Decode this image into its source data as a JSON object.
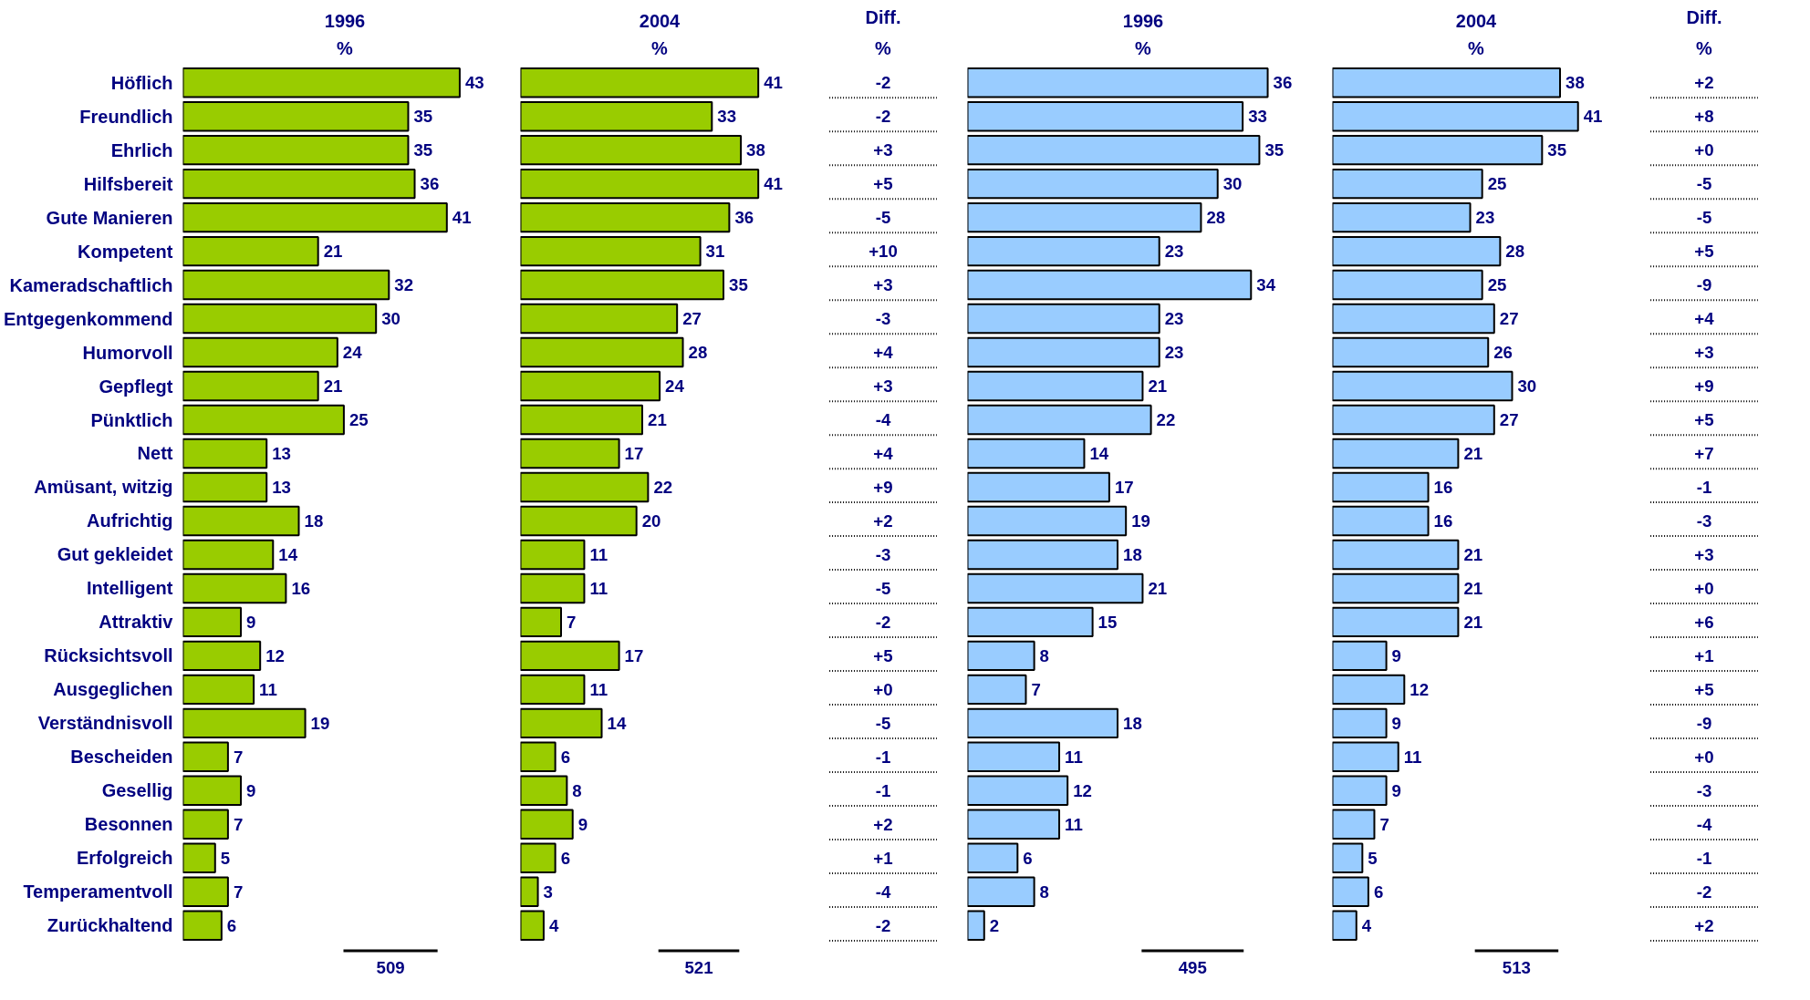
{
  "chart_data": [
    {
      "type": "bar",
      "orientation": "horizontal",
      "title": "1996",
      "subtitle": "%",
      "data_labels": true,
      "tick_labels": "y",
      "categories": [
        "Höflich",
        "Freundlich",
        "Ehrlich",
        "Hilfsbereit",
        "Gute Manieren",
        "Kompetent",
        "Kameradschaftlich",
        "Entgegenkommend",
        "Humorvoll",
        "Gepflegt",
        "Pünktlich",
        "Nett",
        "Amüsant, witzig",
        "Aufrichtig",
        "Gut gekleidet",
        "Intelligent",
        "Attraktiv",
        "Rücksichtsvoll",
        "Ausgeglichen",
        "Verständnisvoll",
        "Bescheiden",
        "Gesellig",
        "Besonnen",
        "Erfolgreich",
        "Temperamentvoll",
        "Zurückhaltend"
      ],
      "series": [
        {
          "color": "#99cc00",
          "values": [
            43,
            35,
            35,
            36,
            41,
            21,
            32,
            30,
            24,
            21,
            25,
            13,
            13,
            18,
            14,
            16,
            9,
            12,
            11,
            19,
            7,
            9,
            7,
            5,
            7,
            6
          ]
        }
      ],
      "annotations": [
        "509"
      ]
    },
    {
      "type": "bar",
      "orientation": "horizontal",
      "title": "2004",
      "subtitle": "%",
      "data_labels": true,
      "tick_labels": false,
      "categories": [
        null,
        null,
        null,
        null,
        null,
        null,
        null,
        null,
        null,
        null,
        null,
        null,
        null,
        null,
        null,
        null,
        null,
        null,
        null,
        null,
        null,
        null,
        null,
        null,
        null,
        null
      ],
      "series": [
        {
          "color": "#99cc00",
          "values": [
            41,
            33,
            38,
            41,
            36,
            31,
            35,
            27,
            28,
            24,
            21,
            17,
            22,
            20,
            11,
            11,
            7,
            17,
            11,
            14,
            6,
            8,
            9,
            6,
            3,
            4
          ]
        }
      ],
      "annotations": [
        "521"
      ]
    },
    {
      "type": "other",
      "title": "Diff.",
      "subtitle": "%",
      "categories": [
        null,
        null,
        null,
        null,
        null,
        null,
        null,
        null,
        null,
        null,
        null,
        null,
        null,
        null,
        null,
        null,
        null,
        null,
        null,
        null,
        null,
        null,
        null,
        null,
        null,
        null
      ],
      "value_labels": [
        "-2",
        "-2",
        "+3",
        "+5",
        "-5",
        "+10",
        "+3",
        "-3",
        "+4",
        "+3",
        "-4",
        "+4",
        "+9",
        "+2",
        "-3",
        "-5",
        "-2",
        "+5",
        "+0",
        "-5",
        "-1",
        "-1",
        "+2",
        "+1",
        "-4",
        "-2"
      ]
    },
    {
      "type": "bar",
      "orientation": "horizontal",
      "title": "1996",
      "subtitle": "%",
      "data_labels": true,
      "tick_labels": false,
      "categories": [
        null,
        null,
        null,
        null,
        null,
        null,
        null,
        null,
        null,
        null,
        null,
        null,
        null,
        null,
        null,
        null,
        null,
        null,
        null,
        null,
        null,
        null,
        null,
        null,
        null,
        null
      ],
      "series": [
        {
          "color": "#99ccff",
          "values": [
            36,
            33,
            35,
            30,
            28,
            23,
            34,
            23,
            23,
            21,
            22,
            14,
            17,
            19,
            18,
            21,
            15,
            8,
            7,
            18,
            11,
            12,
            11,
            6,
            8,
            2
          ]
        }
      ],
      "annotations": [
        "495"
      ]
    },
    {
      "type": "bar",
      "orientation": "horizontal",
      "title": "2004",
      "subtitle": "%",
      "data_labels": true,
      "tick_labels": false,
      "categories": [
        null,
        null,
        null,
        null,
        null,
        null,
        null,
        null,
        null,
        null,
        null,
        null,
        null,
        null,
        null,
        null,
        null,
        null,
        null,
        null,
        null,
        null,
        null,
        null,
        null,
        null
      ],
      "series": [
        {
          "color": "#99ccff",
          "values": [
            38,
            41,
            35,
            25,
            23,
            28,
            25,
            27,
            26,
            30,
            27,
            21,
            16,
            16,
            21,
            21,
            21,
            9,
            12,
            9,
            11,
            9,
            7,
            5,
            6,
            4
          ]
        }
      ],
      "annotations": [
        "513"
      ]
    },
    {
      "type": "other",
      "title": "Diff.",
      "subtitle": "%",
      "categories": [
        null,
        null,
        null,
        null,
        null,
        null,
        null,
        null,
        null,
        null,
        null,
        null,
        null,
        null,
        null,
        null,
        null,
        null,
        null,
        null,
        null,
        null,
        null,
        null,
        null,
        null
      ],
      "value_labels": [
        "+2",
        "+8",
        "+0",
        "-5",
        "-5",
        "+5",
        "-9",
        "+4",
        "+3",
        "+9",
        "+5",
        "+7",
        "-1",
        "-3",
        "+3",
        "+0",
        "+6",
        "+1",
        "+5",
        "-9",
        "+0",
        "-3",
        "-4",
        "-1",
        "-2",
        "+2"
      ]
    }
  ]
}
